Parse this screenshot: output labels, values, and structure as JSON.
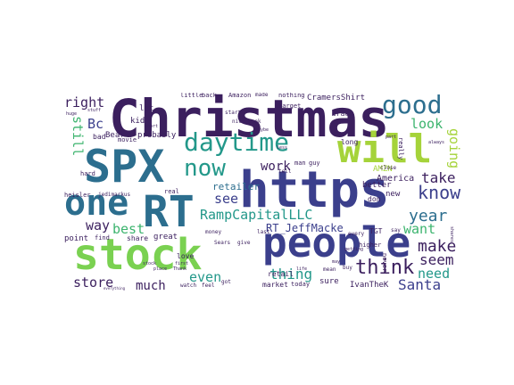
{
  "palette": {
    "dark_purple": "#3b1f5e",
    "indigo": "#3b3f8c",
    "blue": "#2c6e8e",
    "teal": "#23988a",
    "green": "#3cb46e",
    "lime": "#a5d33a",
    "yellow": "#dfe22a"
  },
  "words": [
    {
      "text": "Christmas",
      "color": "#3b1f5e"
    },
    {
      "text": "https",
      "color": "#3b3f8c"
    },
    {
      "text": "SPX",
      "color": "#2c6e8e"
    },
    {
      "text": "will",
      "color": "#a5d33a"
    },
    {
      "text": "people",
      "color": "#3b3f8c"
    },
    {
      "text": "stock",
      "color": "#7ad151"
    },
    {
      "text": "RT",
      "color": "#2c6e8e"
    },
    {
      "text": "one",
      "color": "#2c6e8e"
    },
    {
      "text": "good",
      "color": "#2c6e8e"
    },
    {
      "text": "daytime",
      "color": "#23988a"
    },
    {
      "text": "now",
      "color": "#23988a"
    },
    {
      "text": "think",
      "color": "#3b1f5e"
    },
    {
      "text": "RampCapitalLLC",
      "color": "#23988a"
    },
    {
      "text": "RT_JeffMacke",
      "color": "#3b3f8c"
    },
    {
      "text": "year",
      "color": "#2c6e8e"
    },
    {
      "text": "know",
      "color": "#3b3f8c"
    },
    {
      "text": "take",
      "color": "#3b1f5e"
    },
    {
      "text": "make",
      "color": "#3b1f5e"
    },
    {
      "text": "seem",
      "color": "#3b1f5e"
    },
    {
      "text": "need",
      "color": "#23988a"
    },
    {
      "text": "Santa",
      "color": "#3b3f8c"
    },
    {
      "text": "store",
      "color": "#3b1f5e"
    },
    {
      "text": "much",
      "color": "#3b1f5e"
    },
    {
      "text": "even",
      "color": "#23988a"
    },
    {
      "text": "thing",
      "color": "#23988a"
    },
    {
      "text": "want",
      "color": "#3cb46e"
    },
    {
      "text": "best",
      "color": "#3cb46e"
    },
    {
      "text": "way",
      "color": "#3b1f5e"
    },
    {
      "text": "see",
      "color": "#3b3f8c"
    },
    {
      "text": "retailer",
      "color": "#2c6e8e"
    },
    {
      "text": "work",
      "color": "#3b1f5e"
    },
    {
      "text": "look",
      "color": "#3cb46e"
    },
    {
      "text": "going",
      "color": "#a5d33a"
    },
    {
      "text": "still",
      "color": "#3cb46e"
    },
    {
      "text": "right",
      "color": "#3b1f5e"
    },
    {
      "text": "Bc",
      "color": "#3b3f8c"
    },
    {
      "text": "AMZN",
      "color": "#a5d33a"
    },
    {
      "text": "America",
      "color": "#3b1f5e"
    },
    {
      "text": "CramersShirt",
      "color": "#3b1f5e"
    },
    {
      "text": "Amazon",
      "color": "#3b1f5e"
    },
    {
      "text": "probably",
      "color": "#3b1f5e"
    },
    {
      "text": "share",
      "color": "#3b1f5e"
    },
    {
      "text": "great",
      "color": "#3b1f5e"
    },
    {
      "text": "point",
      "color": "#3b1f5e"
    },
    {
      "text": "kid",
      "color": "#3b1f5e"
    },
    {
      "text": "Bear",
      "color": "#3b1f5e"
    },
    {
      "text": "lot",
      "color": "#3b1f5e"
    },
    {
      "text": "bad",
      "color": "#3b1f5e"
    },
    {
      "text": "little",
      "color": "#3b1f5e"
    },
    {
      "text": "back",
      "color": "#3b1f5e"
    },
    {
      "text": "love",
      "color": "#3b1f5e"
    },
    {
      "text": "market",
      "color": "#3b1f5e"
    },
    {
      "text": "retail",
      "color": "#3b1f5e"
    },
    {
      "text": "today",
      "color": "#3b1f5e"
    },
    {
      "text": "sure",
      "color": "#3b1f5e"
    },
    {
      "text": "IvanTheK",
      "color": "#3b1f5e"
    },
    {
      "text": "better",
      "color": "#3b1f5e"
    },
    {
      "text": "don",
      "color": "#3b1f5e"
    },
    {
      "text": "new",
      "color": "#3b1f5e"
    },
    {
      "text": "TGT",
      "color": "#3b1f5e"
    },
    {
      "text": "nothing",
      "color": "#3b1f5e"
    },
    {
      "text": "made",
      "color": "#3b1f5e"
    },
    {
      "text": "trade",
      "color": "#3b1f5e"
    },
    {
      "text": "Target",
      "color": "#3b1f5e"
    },
    {
      "text": "long",
      "color": "#3b1f5e"
    },
    {
      "text": "man",
      "color": "#3b1f5e"
    },
    {
      "text": "guy",
      "color": "#3b1f5e"
    },
    {
      "text": "higher",
      "color": "#3b1f5e"
    },
    {
      "text": "heisler",
      "color": "#3b1f5e"
    },
    {
      "text": "jedimarkus",
      "color": "#3b1f5e"
    },
    {
      "text": "real",
      "color": "#3b1f5e"
    },
    {
      "text": "movie",
      "color": "#3b1f5e"
    },
    {
      "text": "hard",
      "color": "#3b1f5e"
    },
    {
      "text": "find",
      "color": "#3b1f5e"
    },
    {
      "text": "Sears",
      "color": "#3b1f5e"
    },
    {
      "text": "money",
      "color": "#3b1f5e"
    },
    {
      "text": "give",
      "color": "#3b1f5e"
    },
    {
      "text": "feel",
      "color": "#3b1f5e"
    },
    {
      "text": "got",
      "color": "#3b1f5e"
    },
    {
      "text": "watch",
      "color": "#3b1f5e"
    },
    {
      "text": "last",
      "color": "#3b1f5e"
    },
    {
      "text": "buy",
      "color": "#3b1f5e"
    },
    {
      "text": "mean",
      "color": "#3b1f5e"
    },
    {
      "text": "say",
      "color": "#3b1f5e"
    },
    {
      "text": "never",
      "color": "#3b1f5e"
    },
    {
      "text": "really",
      "color": "#3b1f5e"
    },
    {
      "text": "close",
      "color": "#3b1f5e"
    },
    {
      "text": "start",
      "color": "#3b1f5e"
    },
    {
      "text": "nice",
      "color": "#3b1f5e"
    },
    {
      "text": "week",
      "color": "#3b1f5e"
    },
    {
      "text": "tell",
      "color": "#3b1f5e"
    },
    {
      "text": "every",
      "color": "#3b1f5e"
    },
    {
      "text": "maybe",
      "color": "#3b1f5e"
    },
    {
      "text": "getting",
      "color": "#3b1f5e"
    },
    {
      "text": "stuff",
      "color": "#3b1f5e"
    },
    {
      "text": "huge",
      "color": "#3b1f5e"
    },
    {
      "text": "place",
      "color": "#3b1f5e"
    },
    {
      "text": "less",
      "color": "#3b1f5e"
    },
    {
      "text": "may",
      "color": "#3b1f5e"
    },
    {
      "text": "first",
      "color": "#3b1f5e"
    },
    {
      "text": "Thank",
      "color": "#3b1f5e"
    },
    {
      "text": "always",
      "color": "#3b1f5e"
    },
    {
      "text": "everything",
      "color": "#3b1f5e"
    },
    {
      "text": "stock",
      "color": "#3b1f5e"
    },
    {
      "text": "part",
      "color": "#3b1f5e"
    },
    {
      "text": "short",
      "color": "#3b1f5e"
    },
    {
      "text": "life",
      "color": "#3b1f5e"
    },
    {
      "text": "shares",
      "color": "#3b1f5e"
    }
  ]
}
